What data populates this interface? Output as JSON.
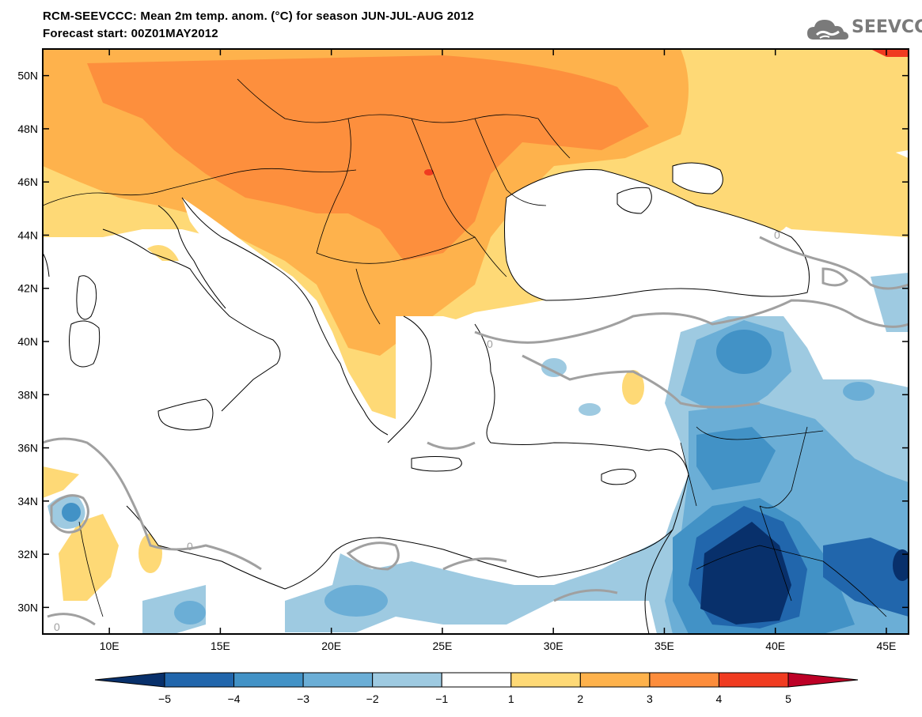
{
  "header": {
    "title_line1": "RCM-SEEVCCC: Mean 2m temp. anom. (°C) for season JUN-JUL-AUG 2012",
    "title_line2": "Forecast start: 00Z01MAY2012"
  },
  "logo": {
    "text": "SEEVCCC",
    "icon": "cloud-icon"
  },
  "map": {
    "lat_range": [
      29,
      51
    ],
    "lon_range": [
      7,
      46
    ],
    "lat_labels": [
      "30N",
      "32N",
      "34N",
      "36N",
      "38N",
      "40N",
      "42N",
      "44N",
      "46N",
      "48N",
      "50N"
    ],
    "lon_labels": [
      "10E",
      "15E",
      "20E",
      "25E",
      "30E",
      "35E",
      "40E",
      "45E"
    ],
    "contour_label": "0"
  },
  "colorbar": {
    "labels": [
      "−5",
      "−4",
      "−3",
      "−2",
      "−1",
      "1",
      "2",
      "3",
      "4",
      "5"
    ],
    "colors": [
      "#08306b",
      "#2166ac",
      "#4292c6",
      "#6baed6",
      "#9ecae1",
      "#ffffff",
      "#fed976",
      "#feb24c",
      "#fd8d3c",
      "#f03b20",
      "#bd0026"
    ]
  }
}
